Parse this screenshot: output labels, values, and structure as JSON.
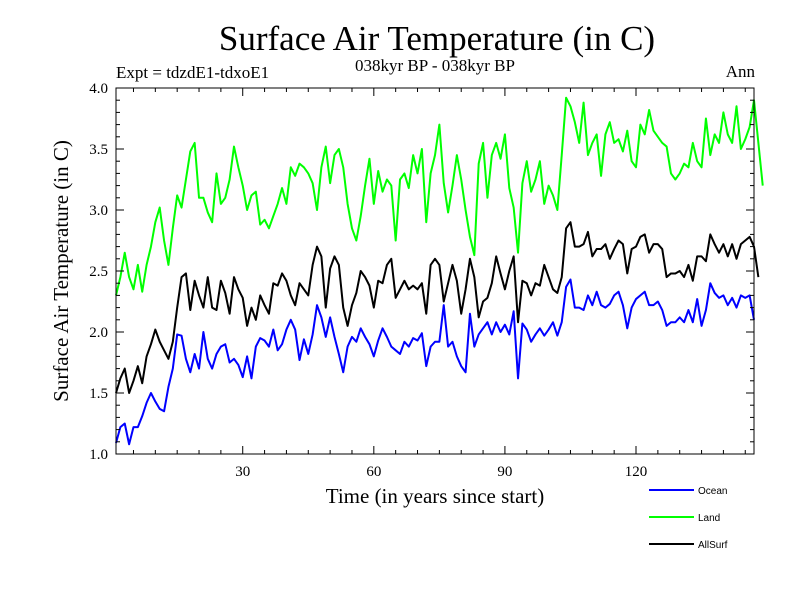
{
  "chart_data": {
    "type": "line",
    "title": "Surface Air Temperature (in C)",
    "subtitle": "038kyr BP - 038kyr BP",
    "experiment_label": "Expt = tdzdE1-tdxoE1",
    "period_label": "Ann",
    "xlabel": "Time (in years since start)",
    "ylabel": "Surface Air Temperature (in C)",
    "xlim": [
      1,
      147
    ],
    "ylim": [
      1.0,
      4.0
    ],
    "x_start": 1,
    "x_step": 1,
    "x_ticks": [
      30,
      60,
      90,
      120
    ],
    "x_tick_labels": [
      "30",
      "60",
      "90",
      "120"
    ],
    "y_ticks": [
      1.0,
      1.5,
      2.0,
      2.5,
      3.0,
      3.5,
      4.0
    ],
    "y_tick_labels": [
      "1.0",
      "1.5",
      "2.0",
      "2.5",
      "3.0",
      "3.5",
      "4.0"
    ],
    "legend_position": "below-right",
    "series": [
      {
        "name": "Ocean",
        "color": "#0000ff",
        "values": [
          1.09,
          1.22,
          1.25,
          1.08,
          1.22,
          1.22,
          1.31,
          1.42,
          1.5,
          1.43,
          1.37,
          1.35,
          1.55,
          1.7,
          1.98,
          1.97,
          1.78,
          1.67,
          1.82,
          1.7,
          2.0,
          1.78,
          1.7,
          1.82,
          1.88,
          1.9,
          1.75,
          1.78,
          1.73,
          1.63,
          1.8,
          1.62,
          1.88,
          1.95,
          1.93,
          1.88,
          2.02,
          1.85,
          1.9,
          2.02,
          2.1,
          2.02,
          1.77,
          1.94,
          1.82,
          1.98,
          2.22,
          2.12,
          1.96,
          2.12,
          1.96,
          1.82,
          1.67,
          1.88,
          1.96,
          1.92,
          2.03,
          1.96,
          1.9,
          1.8,
          1.93,
          2.03,
          1.96,
          1.88,
          1.85,
          1.82,
          1.92,
          1.88,
          1.95,
          1.93,
          1.99,
          1.72,
          1.88,
          1.92,
          1.92,
          2.22,
          1.88,
          1.92,
          1.8,
          1.72,
          1.67,
          2.15,
          1.88,
          1.98,
          2.03,
          2.08,
          1.98,
          2.08,
          2.0,
          2.06,
          1.98,
          2.17,
          1.62,
          2.07,
          2.02,
          1.92,
          1.98,
          2.03,
          1.97,
          2.02,
          2.08,
          1.97,
          2.08,
          2.37,
          2.43,
          2.2,
          2.2,
          2.18,
          2.3,
          2.22,
          2.33,
          2.22,
          2.2,
          2.23,
          2.3,
          2.33,
          2.22,
          2.03,
          2.2,
          2.27,
          2.3,
          2.33,
          2.22,
          2.22,
          2.25,
          2.18,
          2.05,
          2.08,
          2.08,
          2.12,
          2.08,
          2.18,
          2.08,
          2.27,
          2.05,
          2.18,
          2.4,
          2.32,
          2.28,
          2.3,
          2.22,
          2.28,
          2.2,
          2.3,
          2.28,
          2.3,
          2.1
        ]
      },
      {
        "name": "Land",
        "color": "#00ff00",
        "values": [
          2.3,
          2.45,
          2.65,
          2.45,
          2.35,
          2.55,
          2.33,
          2.55,
          2.7,
          2.9,
          3.02,
          2.75,
          2.55,
          2.85,
          3.12,
          3.02,
          3.25,
          3.48,
          3.55,
          3.1,
          3.1,
          2.98,
          2.9,
          3.3,
          3.05,
          3.1,
          3.25,
          3.52,
          3.35,
          3.2,
          3.0,
          3.12,
          3.15,
          2.88,
          2.92,
          2.85,
          2.95,
          3.05,
          3.18,
          3.05,
          3.35,
          3.28,
          3.38,
          3.35,
          3.3,
          3.22,
          3.0,
          3.35,
          3.52,
          3.22,
          3.45,
          3.5,
          3.35,
          3.05,
          2.85,
          2.75,
          2.95,
          3.2,
          3.42,
          3.05,
          3.32,
          3.15,
          3.25,
          3.2,
          2.75,
          3.25,
          3.3,
          3.18,
          3.45,
          3.3,
          3.5,
          2.9,
          3.3,
          3.45,
          3.7,
          3.22,
          2.98,
          3.2,
          3.45,
          3.25,
          3.0,
          2.78,
          2.63,
          3.38,
          3.55,
          3.1,
          3.45,
          3.55,
          3.42,
          3.62,
          3.18,
          3.02,
          2.65,
          3.22,
          3.4,
          3.15,
          3.25,
          3.4,
          3.05,
          3.2,
          3.12,
          3.0,
          3.45,
          3.92,
          3.85,
          3.72,
          3.55,
          3.88,
          3.45,
          3.55,
          3.62,
          3.28,
          3.62,
          3.72,
          3.55,
          3.58,
          3.48,
          3.65,
          3.4,
          3.35,
          3.7,
          3.62,
          3.82,
          3.65,
          3.6,
          3.55,
          3.52,
          3.3,
          3.25,
          3.3,
          3.38,
          3.35,
          3.55,
          3.4,
          3.35,
          3.75,
          3.45,
          3.62,
          3.55,
          3.8,
          3.62,
          3.55,
          3.85,
          3.5,
          3.58,
          3.68,
          3.9,
          3.55,
          3.2
        ]
      },
      {
        "name": "AllSurf",
        "color": "#000000",
        "values": [
          1.5,
          1.62,
          1.7,
          1.5,
          1.6,
          1.72,
          1.58,
          1.8,
          1.9,
          2.02,
          1.92,
          1.85,
          1.78,
          1.92,
          2.2,
          2.45,
          2.48,
          2.18,
          2.42,
          2.3,
          2.2,
          2.45,
          2.2,
          2.18,
          2.42,
          2.32,
          2.15,
          2.45,
          2.35,
          2.28,
          2.05,
          2.2,
          2.1,
          2.3,
          2.22,
          2.15,
          2.4,
          2.38,
          2.48,
          2.42,
          2.3,
          2.22,
          2.4,
          2.35,
          2.3,
          2.55,
          2.7,
          2.62,
          2.2,
          2.52,
          2.62,
          2.55,
          2.2,
          2.05,
          2.22,
          2.32,
          2.5,
          2.45,
          2.38,
          2.2,
          2.42,
          2.4,
          2.55,
          2.6,
          2.28,
          2.35,
          2.42,
          2.35,
          2.38,
          2.35,
          2.4,
          2.15,
          2.55,
          2.6,
          2.55,
          2.25,
          2.4,
          2.55,
          2.42,
          2.15,
          2.35,
          2.6,
          2.45,
          2.12,
          2.25,
          2.28,
          2.4,
          2.62,
          2.48,
          2.35,
          2.5,
          2.62,
          2.08,
          2.42,
          2.4,
          2.3,
          2.4,
          2.38,
          2.55,
          2.45,
          2.35,
          2.32,
          2.45,
          2.85,
          2.9,
          2.7,
          2.7,
          2.72,
          2.82,
          2.62,
          2.68,
          2.68,
          2.72,
          2.6,
          2.68,
          2.75,
          2.72,
          2.48,
          2.68,
          2.7,
          2.78,
          2.8,
          2.65,
          2.72,
          2.72,
          2.68,
          2.45,
          2.48,
          2.48,
          2.5,
          2.45,
          2.55,
          2.42,
          2.62,
          2.62,
          2.58,
          2.8,
          2.72,
          2.65,
          2.72,
          2.62,
          2.72,
          2.6,
          2.72,
          2.75,
          2.78,
          2.7,
          2.45
        ]
      }
    ]
  }
}
